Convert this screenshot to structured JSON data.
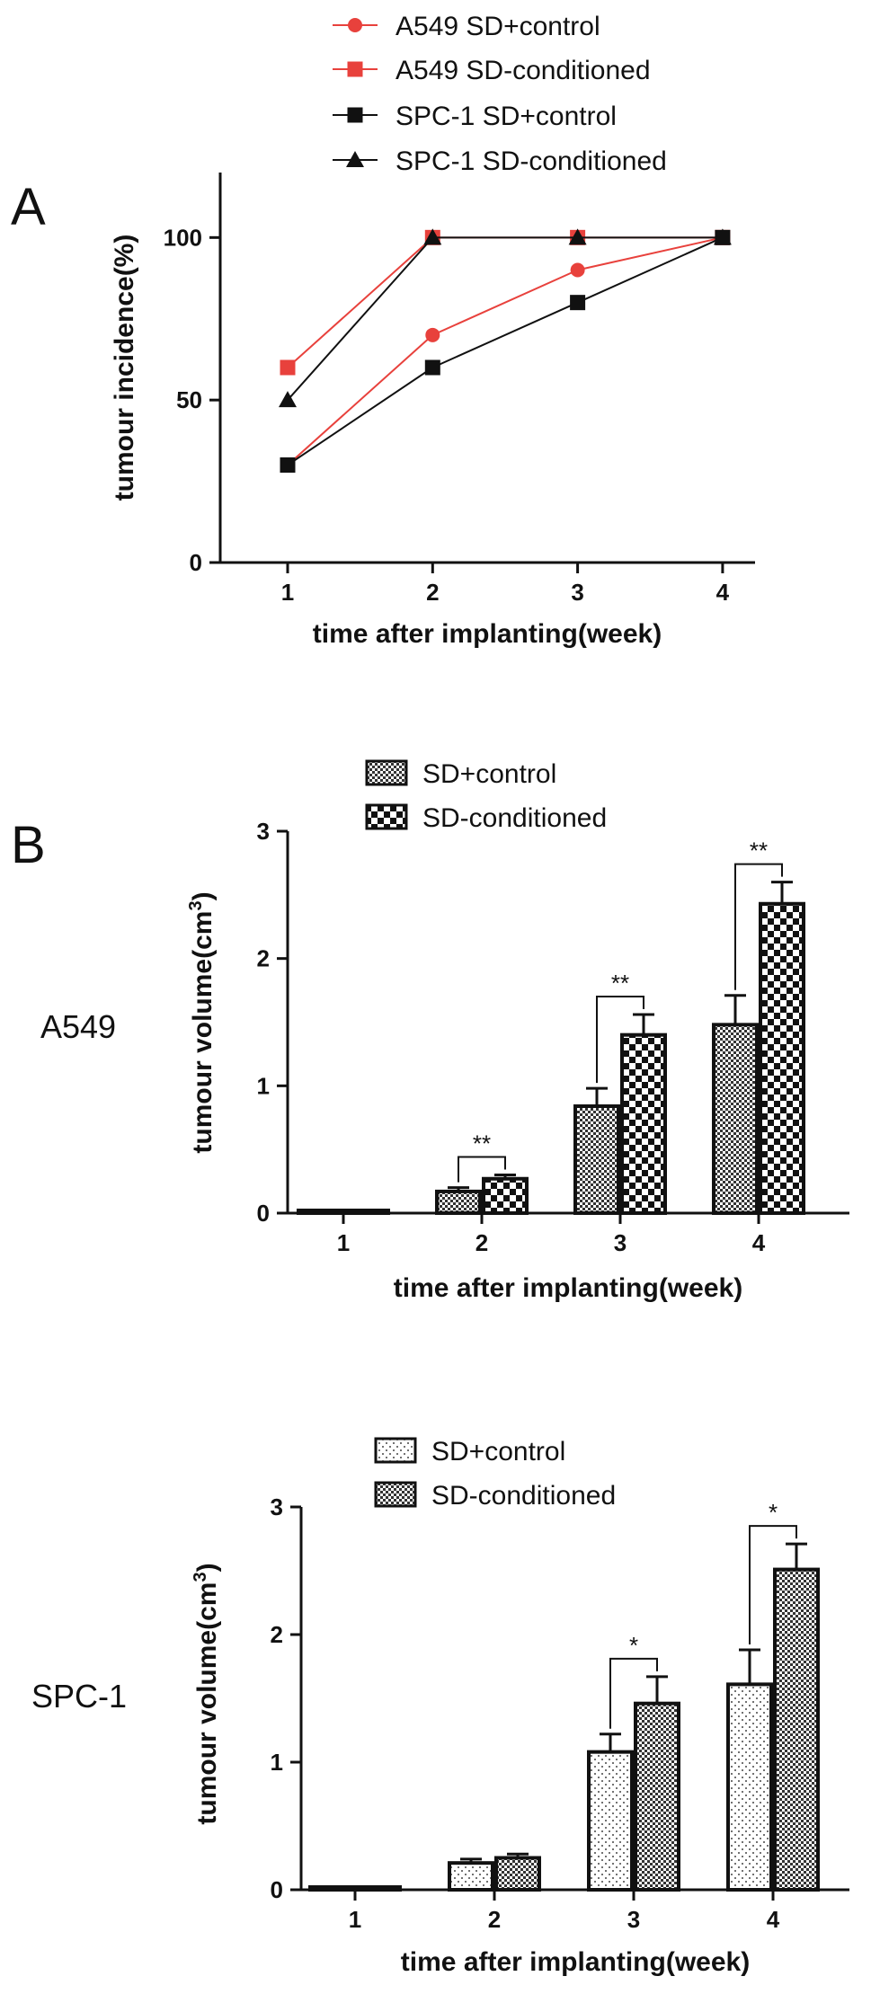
{
  "panel_a_letter": "A",
  "panel_b_letter": "B",
  "chart_data": [
    {
      "type": "line",
      "x": [
        1,
        2,
        3,
        4
      ],
      "xlabel": "time after implanting(week)",
      "ylabel": "tumour incidence(%)",
      "ylim": [
        0,
        120
      ],
      "yticks": [
        0,
        50,
        100
      ],
      "legend_position": "top",
      "series": [
        {
          "name": "A549 SD+control",
          "color": "#e8413c",
          "marker": "circle",
          "values": [
            30,
            70,
            90,
            100
          ]
        },
        {
          "name": "A549 SD-conditioned",
          "color": "#e8413c",
          "marker": "square",
          "values": [
            60,
            100,
            100,
            100
          ]
        },
        {
          "name": "SPC-1 SD+control",
          "color": "#111111",
          "marker": "square",
          "values": [
            30,
            60,
            80,
            100
          ]
        },
        {
          "name": "SPC-1 SD-conditioned",
          "color": "#111111",
          "marker": "triangle",
          "values": [
            50,
            100,
            100,
            100
          ]
        }
      ]
    },
    {
      "type": "bar",
      "row_label": "A549",
      "categories": [
        "1",
        "2",
        "3",
        "4"
      ],
      "xlabel": "time after implanting(week)",
      "ylabel": "tumour volume(cm3)",
      "ylim": [
        0,
        3
      ],
      "yticks": [
        0,
        1,
        2,
        3
      ],
      "legend_position": "top",
      "series": [
        {
          "name": "SD+control",
          "pattern": "dense-dots",
          "values": [
            0.01,
            0.17,
            0.84,
            1.48
          ],
          "errors": [
            0,
            0.03,
            0.14,
            0.23
          ]
        },
        {
          "name": "SD-conditioned",
          "pattern": "checker",
          "values": [
            0.01,
            0.27,
            1.4,
            2.43
          ],
          "errors": [
            0,
            0.03,
            0.16,
            0.17
          ]
        }
      ],
      "significance": [
        {
          "category": "2",
          "label": "**"
        },
        {
          "category": "3",
          "label": "**"
        },
        {
          "category": "4",
          "label": "**"
        }
      ]
    },
    {
      "type": "bar",
      "row_label": "SPC-1",
      "categories": [
        "1",
        "2",
        "3",
        "4"
      ],
      "xlabel": "time after implanting(week)",
      "ylabel": "tumour volume(cm3)",
      "ylim": [
        0,
        3
      ],
      "yticks": [
        0,
        1,
        2,
        3
      ],
      "legend_position": "top",
      "series": [
        {
          "name": "SD+control",
          "pattern": "sparse-dots",
          "values": [
            0.01,
            0.21,
            1.08,
            1.61
          ],
          "errors": [
            0,
            0.03,
            0.14,
            0.27
          ]
        },
        {
          "name": "SD-conditioned",
          "pattern": "dense-dots",
          "values": [
            0.01,
            0.25,
            1.46,
            2.51
          ],
          "errors": [
            0,
            0.03,
            0.21,
            0.2
          ]
        }
      ],
      "significance": [
        {
          "category": "3",
          "label": "*"
        },
        {
          "category": "4",
          "label": "*"
        }
      ]
    }
  ]
}
